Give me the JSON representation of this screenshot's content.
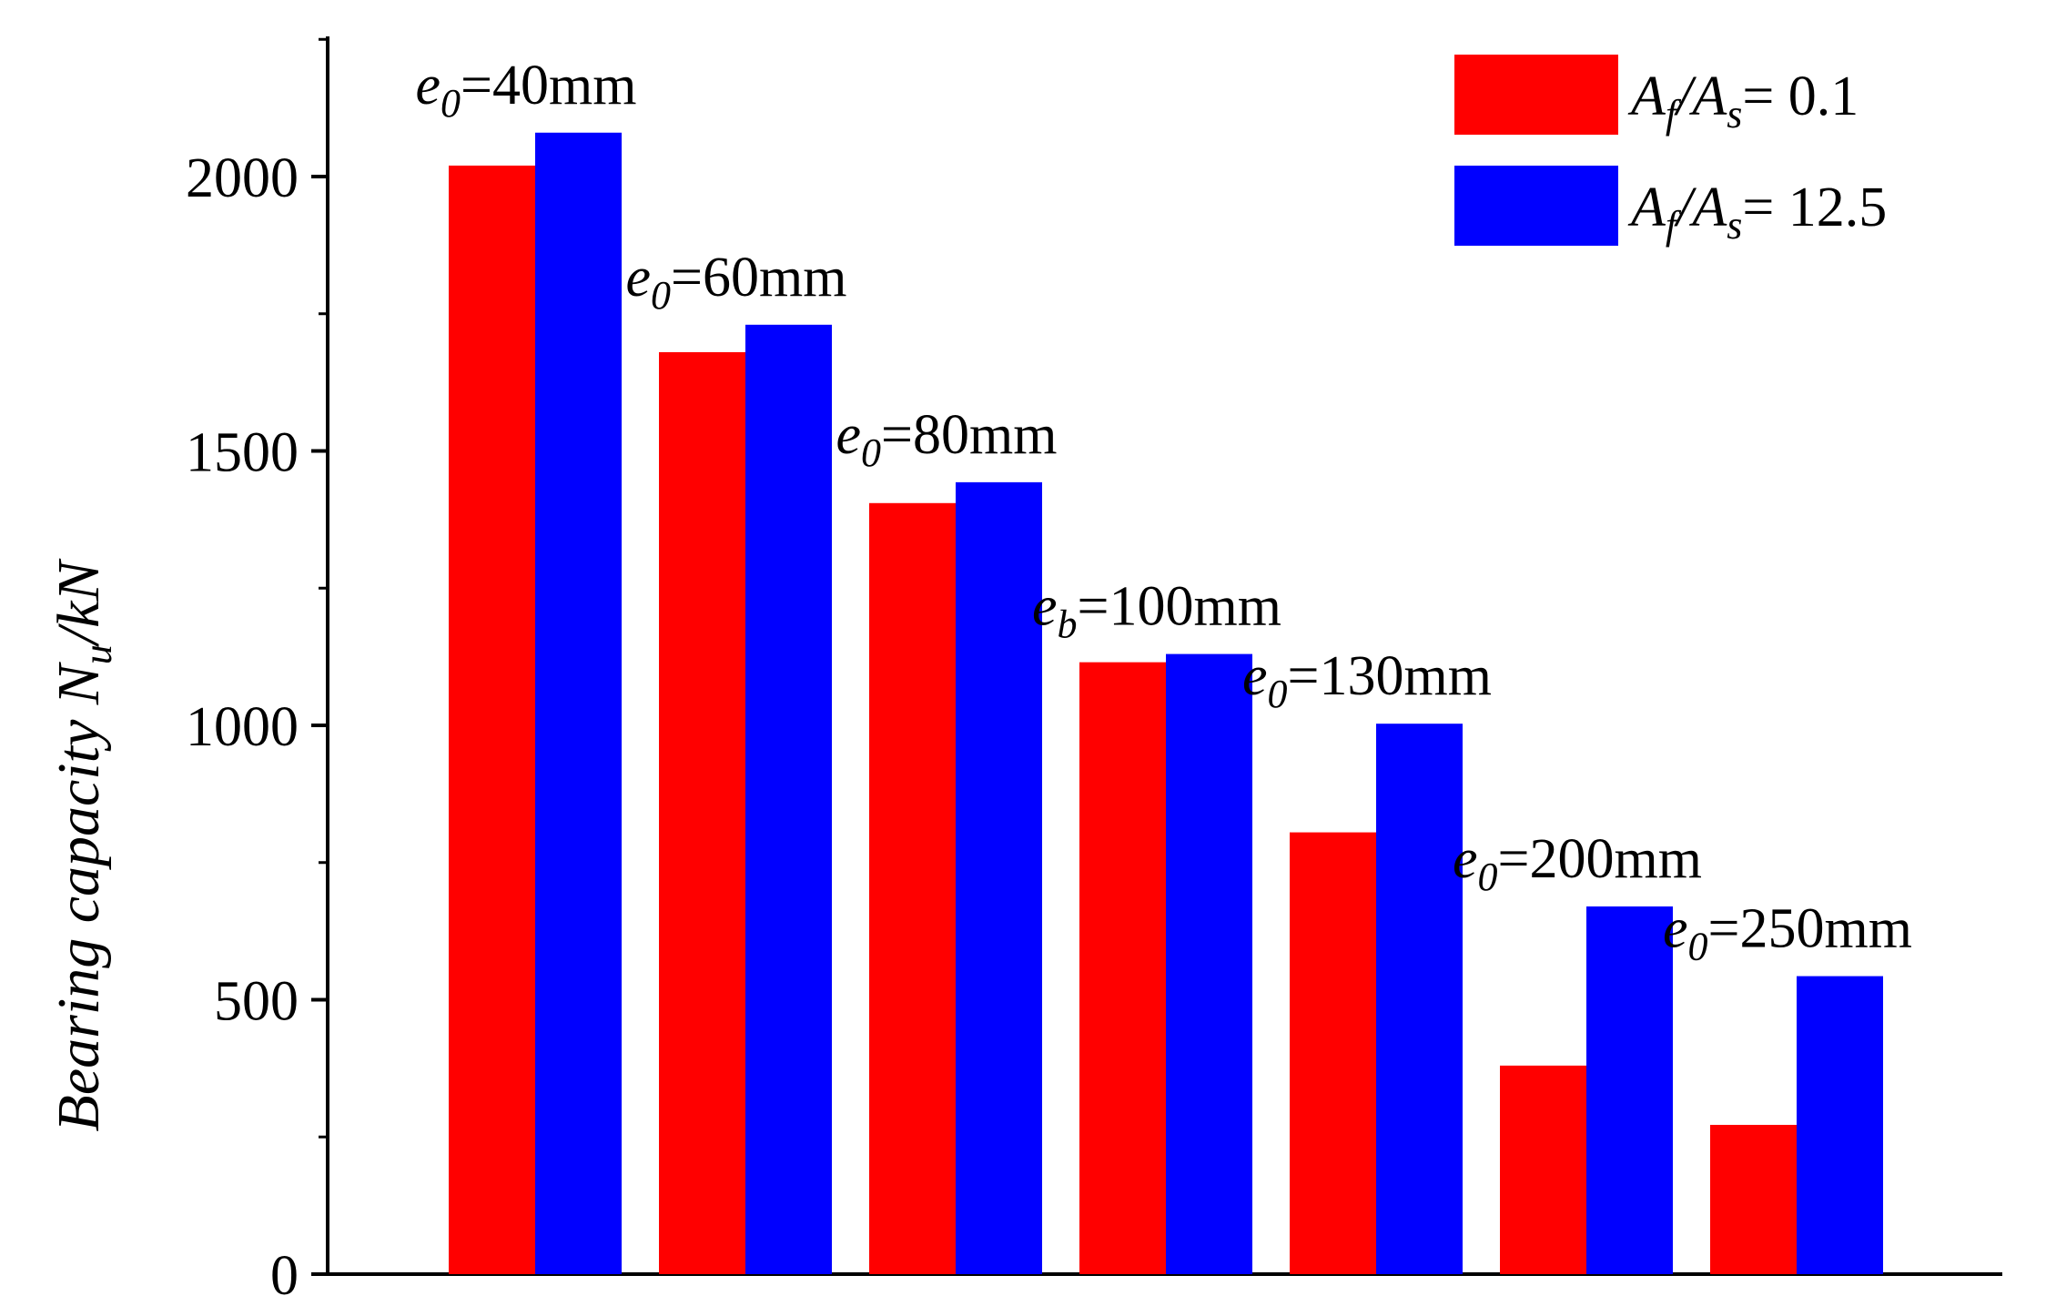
{
  "chart_data": {
    "type": "bar",
    "ylabel": {
      "prefix": "Bearing capacity",
      "symbol": "N",
      "sub": "u",
      "unit": "/kN"
    },
    "ylim": [
      0,
      2250
    ],
    "yticks": [
      0,
      500,
      1000,
      1500,
      2000
    ],
    "ytick_labels": [
      "0",
      "500",
      "1000",
      "1500",
      "2000"
    ],
    "categories": [
      {
        "sym": "e",
        "sub": "0",
        "rest": "=40mm"
      },
      {
        "sym": "e",
        "sub": "0",
        "rest": "=60mm"
      },
      {
        "sym": "e",
        "sub": "0",
        "rest": "=80mm"
      },
      {
        "sym": "e",
        "sub": "b",
        "rest": "=100mm"
      },
      {
        "sym": "e",
        "sub": "0",
        "rest": "=130mm"
      },
      {
        "sym": "e",
        "sub": "0",
        "rest": "=200mm"
      },
      {
        "sym": "e",
        "sub": "0",
        "rest": "=250mm"
      }
    ],
    "series": [
      {
        "legend": {
          "a": "A",
          "asub": "f",
          "b": "/A",
          "bsub": "s",
          "rest": "= 0.1"
        },
        "color": "#ff0000",
        "values": [
          2020,
          1680,
          1405,
          1115,
          805,
          380,
          272
        ]
      },
      {
        "legend": {
          "a": "A",
          "asub": "f",
          "b": "/A",
          "bsub": "s",
          "rest": "= 12.5"
        },
        "color": "#0000ff",
        "values": [
          2080,
          1730,
          1443,
          1130,
          1003,
          670,
          543
        ]
      }
    ],
    "legend_position": "top-right",
    "grid": false
  }
}
